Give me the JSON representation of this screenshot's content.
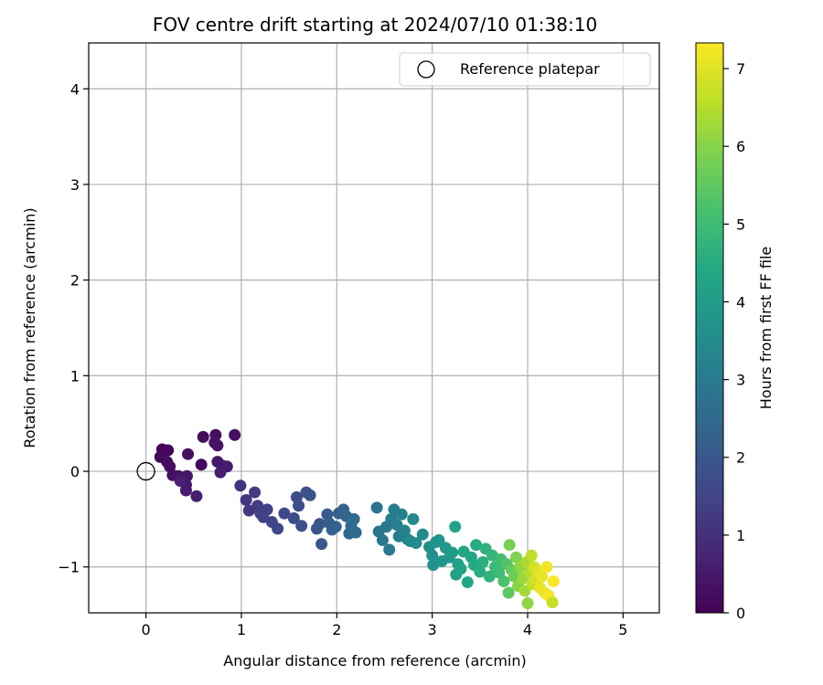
{
  "chart_data": {
    "type": "scatter",
    "title": "FOV centre drift starting at 2024/07/10 01:38:10",
    "xlabel": "Angular distance from reference (arcmin)",
    "ylabel": "Rotation from reference (arcmin)",
    "xlim": [
      -0.6,
      5.38
    ],
    "ylim": [
      -1.48,
      4.48
    ],
    "x_ticks": [
      0,
      1,
      2,
      3,
      4,
      5
    ],
    "y_ticks": [
      -1,
      0,
      1,
      2,
      3,
      4
    ],
    "x_tick_labels": [
      "0",
      "1",
      "2",
      "3",
      "4",
      "5"
    ],
    "y_tick_labels": [
      "−1",
      "0",
      "1",
      "2",
      "3",
      "4"
    ],
    "grid": true,
    "legend_position": "top-right",
    "colormap": "viridis",
    "colorbar": {
      "label": "Hours from first FF file",
      "range": [
        0,
        7.33
      ],
      "ticks": [
        0,
        1,
        2,
        3,
        4,
        5,
        6,
        7
      ],
      "tick_labels": [
        "0",
        "1",
        "2",
        "3",
        "4",
        "5",
        "6",
        "7"
      ]
    },
    "reference": {
      "name": "Reference platepar",
      "x": 0,
      "y": 0
    },
    "series": [
      {
        "color_by": "hours",
        "points": [
          [
            0.17,
            0.23,
            0.05
          ],
          [
            0.23,
            0.22,
            0.1
          ],
          [
            0.15,
            0.15,
            0.15
          ],
          [
            0.22,
            0.1,
            0.2
          ],
          [
            0.25,
            0.05,
            0.25
          ],
          [
            0.28,
            -0.04,
            0.3
          ],
          [
            0.34,
            -0.05,
            0.35
          ],
          [
            0.38,
            -0.08,
            0.4
          ],
          [
            0.43,
            -0.05,
            0.45
          ],
          [
            0.42,
            -0.14,
            0.5
          ],
          [
            0.42,
            -0.2,
            0.55
          ],
          [
            0.53,
            -0.26,
            0.6
          ],
          [
            0.44,
            0.18,
            0.3
          ],
          [
            0.6,
            0.36,
            0.2
          ],
          [
            0.73,
            0.38,
            0.25
          ],
          [
            0.72,
            0.3,
            0.35
          ],
          [
            0.75,
            0.27,
            0.4
          ],
          [
            0.58,
            0.07,
            0.15
          ],
          [
            0.75,
            0.1,
            0.45
          ],
          [
            0.8,
            0.06,
            0.5
          ],
          [
            0.85,
            0.05,
            0.55
          ],
          [
            0.78,
            -0.01,
            0.6
          ],
          [
            0.93,
            0.38,
            0.3
          ],
          [
            0.36,
            -0.1,
            0.65
          ],
          [
            0.99,
            -0.15,
            1.1
          ],
          [
            1.05,
            -0.3,
            1.15
          ],
          [
            1.08,
            -0.41,
            1.2
          ],
          [
            1.14,
            -0.22,
            1.25
          ],
          [
            1.17,
            -0.36,
            1.3
          ],
          [
            1.2,
            -0.44,
            1.35
          ],
          [
            1.23,
            -0.48,
            1.4
          ],
          [
            1.27,
            -0.4,
            1.45
          ],
          [
            1.32,
            -0.53,
            1.5
          ],
          [
            1.38,
            -0.6,
            1.55
          ],
          [
            1.45,
            -0.44,
            1.6
          ],
          [
            1.55,
            -0.49,
            1.65
          ],
          [
            1.58,
            -0.27,
            1.7
          ],
          [
            1.6,
            -0.36,
            1.75
          ],
          [
            1.63,
            -0.57,
            1.8
          ],
          [
            1.68,
            -0.22,
            1.85
          ],
          [
            1.72,
            -0.25,
            1.9
          ],
          [
            1.79,
            -0.6,
            1.95
          ],
          [
            1.82,
            -0.55,
            2.0
          ],
          [
            1.84,
            -0.76,
            2.05
          ],
          [
            1.9,
            -0.45,
            2.1
          ],
          [
            1.92,
            -0.54,
            2.15
          ],
          [
            1.95,
            -0.61,
            2.2
          ],
          [
            1.99,
            -0.58,
            2.25
          ],
          [
            2.02,
            -0.44,
            2.3
          ],
          [
            2.07,
            -0.4,
            2.35
          ],
          [
            2.1,
            -0.47,
            2.4
          ],
          [
            2.13,
            -0.65,
            2.45
          ],
          [
            2.15,
            -0.57,
            2.5
          ],
          [
            2.18,
            -0.5,
            2.55
          ],
          [
            2.2,
            -0.64,
            2.6
          ],
          [
            2.42,
            -0.38,
            2.75
          ],
          [
            2.44,
            -0.63,
            2.8
          ],
          [
            2.48,
            -0.72,
            2.85
          ],
          [
            2.52,
            -0.58,
            2.9
          ],
          [
            2.55,
            -0.82,
            2.95
          ],
          [
            2.57,
            -0.5,
            3.0
          ],
          [
            2.6,
            -0.4,
            3.05
          ],
          [
            2.63,
            -0.56,
            3.1
          ],
          [
            2.65,
            -0.68,
            3.15
          ],
          [
            2.68,
            -0.45,
            3.2
          ],
          [
            2.71,
            -0.62,
            3.25
          ],
          [
            2.74,
            -0.71,
            3.3
          ],
          [
            2.77,
            -0.73,
            3.35
          ],
          [
            2.8,
            -0.5,
            3.4
          ],
          [
            2.83,
            -0.75,
            3.45
          ],
          [
            2.9,
            -0.66,
            3.5
          ],
          [
            2.97,
            -0.79,
            3.6
          ],
          [
            3.0,
            -0.88,
            3.65
          ],
          [
            3.01,
            -0.98,
            3.7
          ],
          [
            3.04,
            -0.74,
            3.75
          ],
          [
            3.07,
            -0.72,
            3.8
          ],
          [
            3.1,
            -0.94,
            3.85
          ],
          [
            3.14,
            -0.8,
            3.9
          ],
          [
            3.18,
            -0.9,
            3.95
          ],
          [
            3.21,
            -0.85,
            4.0
          ],
          [
            3.24,
            -0.58,
            4.25
          ],
          [
            3.25,
            -1.08,
            4.1
          ],
          [
            3.27,
            -0.97,
            4.15
          ],
          [
            3.3,
            -1.02,
            4.2
          ],
          [
            3.33,
            -0.84,
            4.3
          ],
          [
            3.37,
            -1.16,
            4.35
          ],
          [
            3.41,
            -0.9,
            4.4
          ],
          [
            3.44,
            -0.98,
            4.45
          ],
          [
            3.46,
            -0.77,
            4.5
          ],
          [
            3.5,
            -1.05,
            4.55
          ],
          [
            3.53,
            -0.95,
            4.6
          ],
          [
            3.56,
            -0.81,
            4.7
          ],
          [
            3.6,
            -1.1,
            4.75
          ],
          [
            3.63,
            -0.88,
            4.8
          ],
          [
            3.66,
            -1.0,
            4.9
          ],
          [
            3.7,
            -1.06,
            5.0
          ],
          [
            3.72,
            -0.92,
            5.1
          ],
          [
            3.75,
            -1.15,
            5.2
          ],
          [
            3.78,
            -0.97,
            5.3
          ],
          [
            3.81,
            -0.77,
            5.8
          ],
          [
            3.8,
            -1.27,
            5.5
          ],
          [
            3.83,
            -1.03,
            5.6
          ],
          [
            3.86,
            -1.1,
            5.7
          ],
          [
            3.88,
            -0.9,
            5.9
          ],
          [
            3.9,
            -1.2,
            6.0
          ],
          [
            3.92,
            -1.0,
            6.1
          ],
          [
            3.95,
            -1.12,
            6.2
          ],
          [
            3.97,
            -1.25,
            6.3
          ],
          [
            4.0,
            -1.38,
            6.1
          ],
          [
            3.99,
            -0.95,
            6.4
          ],
          [
            4.02,
            -1.06,
            6.5
          ],
          [
            4.04,
            -0.88,
            6.6
          ],
          [
            4.05,
            -1.18,
            6.7
          ],
          [
            4.07,
            -1.0,
            6.8
          ],
          [
            4.09,
            -1.12,
            6.9
          ],
          [
            4.11,
            -1.05,
            7.0
          ],
          [
            4.13,
            -1.22,
            7.05
          ],
          [
            4.15,
            -1.1,
            7.1
          ],
          [
            4.18,
            -1.27,
            7.15
          ],
          [
            4.2,
            -1.0,
            7.2
          ],
          [
            4.22,
            -1.3,
            7.25
          ],
          [
            4.26,
            -1.37,
            6.7
          ],
          [
            4.27,
            -1.15,
            7.3
          ]
        ]
      }
    ]
  }
}
